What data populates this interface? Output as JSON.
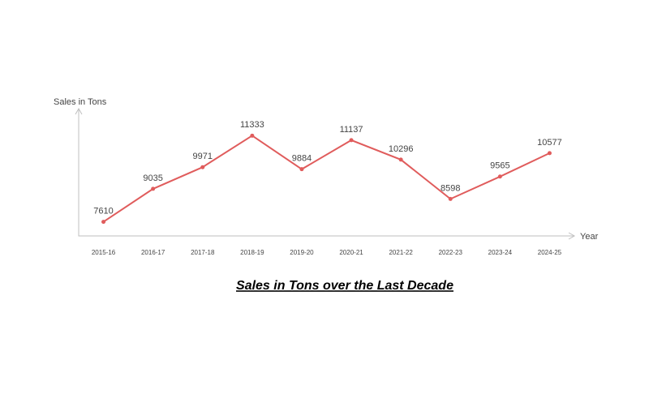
{
  "chart_data": {
    "type": "line",
    "title": "Sales in Tons over the Last Decade",
    "y_label": "Sales in Tons",
    "x_label": "Year",
    "categories": [
      "2015-16",
      "2016-17",
      "2017-18",
      "2018-19",
      "2019-20",
      "2020-21",
      "2021-22",
      "2022-23",
      "2023-24",
      "2024-25"
    ],
    "series": [
      {
        "name": "Sales in Tons",
        "color": "#e05c5c",
        "values": [
          7610,
          9035,
          9971,
          11333,
          9884,
          11137,
          10296,
          8598,
          9565,
          10577
        ]
      }
    ],
    "ylim": [
      7000,
      12500
    ]
  }
}
